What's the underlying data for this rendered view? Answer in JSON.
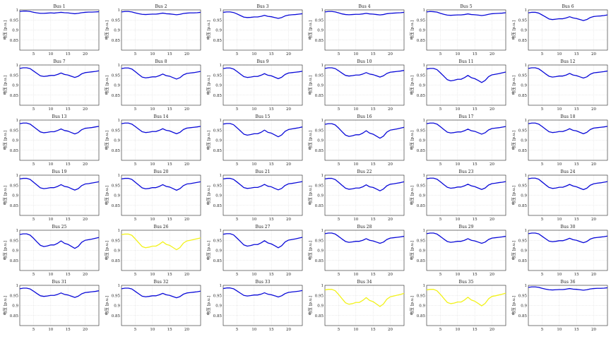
{
  "chart_data": {
    "type": "line",
    "layout": "grid 6x6 small multiples",
    "ylabel": "电压 [p.u.]",
    "xlabel": "",
    "x": [
      1,
      2,
      3,
      4,
      5,
      6,
      7,
      8,
      9,
      10,
      11,
      12,
      13,
      14,
      15,
      16,
      17,
      18,
      19,
      20,
      21,
      22,
      23,
      24
    ],
    "xlim": [
      1,
      24
    ],
    "ylim": [
      0.8,
      1.0
    ],
    "xticks": [
      5,
      10,
      15,
      20
    ],
    "yticks": [
      0.85,
      0.9,
      0.95,
      1
    ],
    "grid": true,
    "colors": {
      "normal": "#0a0ad8",
      "highlight": "#f2f21a",
      "frame": "#222222",
      "grid": "#d9d9d9"
    },
    "panels": [
      {
        "title": "Bus 1",
        "highlight": false,
        "values": [
          0.992,
          0.994,
          0.994,
          0.992,
          0.988,
          0.985,
          0.983,
          0.983,
          0.984,
          0.985,
          0.984,
          0.986,
          0.988,
          0.986,
          0.985,
          0.983,
          0.981,
          0.983,
          0.986,
          0.988,
          0.989,
          0.989,
          0.99,
          0.991
        ]
      },
      {
        "title": "Bus 2",
        "highlight": false,
        "values": [
          0.99,
          0.992,
          0.992,
          0.99,
          0.985,
          0.981,
          0.978,
          0.977,
          0.978,
          0.979,
          0.979,
          0.981,
          0.984,
          0.981,
          0.98,
          0.978,
          0.976,
          0.978,
          0.982,
          0.984,
          0.985,
          0.985,
          0.986,
          0.988
        ]
      },
      {
        "title": "Bus 3",
        "highlight": false,
        "values": [
          0.988,
          0.99,
          0.99,
          0.987,
          0.98,
          0.972,
          0.964,
          0.962,
          0.963,
          0.965,
          0.965,
          0.968,
          0.973,
          0.968,
          0.966,
          0.962,
          0.958,
          0.962,
          0.97,
          0.974,
          0.976,
          0.977,
          0.979,
          0.981
        ]
      },
      {
        "title": "Bus 4",
        "highlight": false,
        "values": [
          0.99,
          0.992,
          0.992,
          0.99,
          0.985,
          0.98,
          0.977,
          0.976,
          0.977,
          0.978,
          0.978,
          0.98,
          0.983,
          0.98,
          0.979,
          0.977,
          0.975,
          0.977,
          0.981,
          0.983,
          0.984,
          0.985,
          0.986,
          0.988
        ]
      },
      {
        "title": "Bus 5",
        "highlight": false,
        "values": [
          0.99,
          0.992,
          0.991,
          0.989,
          0.983,
          0.978,
          0.974,
          0.973,
          0.974,
          0.975,
          0.975,
          0.977,
          0.98,
          0.977,
          0.976,
          0.974,
          0.972,
          0.974,
          0.978,
          0.981,
          0.982,
          0.983,
          0.984,
          0.986
        ]
      },
      {
        "title": "Bus 6",
        "highlight": false,
        "values": [
          0.985,
          0.988,
          0.988,
          0.984,
          0.975,
          0.965,
          0.955,
          0.952,
          0.954,
          0.956,
          0.956,
          0.96,
          0.966,
          0.96,
          0.957,
          0.952,
          0.947,
          0.952,
          0.962,
          0.967,
          0.969,
          0.97,
          0.972,
          0.975
        ]
      },
      {
        "title": "Bus 7",
        "highlight": false,
        "values": [
          0.983,
          0.986,
          0.986,
          0.982,
          0.97,
          0.958,
          0.946,
          0.943,
          0.945,
          0.948,
          0.948,
          0.953,
          0.96,
          0.953,
          0.95,
          0.944,
          0.938,
          0.944,
          0.956,
          0.962,
          0.964,
          0.966,
          0.968,
          0.971
        ]
      },
      {
        "title": "Bus 8",
        "highlight": false,
        "values": [
          0.982,
          0.985,
          0.985,
          0.98,
          0.967,
          0.953,
          0.94,
          0.936,
          0.938,
          0.941,
          0.941,
          0.947,
          0.955,
          0.947,
          0.944,
          0.937,
          0.93,
          0.937,
          0.951,
          0.958,
          0.96,
          0.962,
          0.965,
          0.968
        ]
      },
      {
        "title": "Bus 9",
        "highlight": false,
        "values": [
          0.982,
          0.985,
          0.985,
          0.98,
          0.968,
          0.955,
          0.942,
          0.938,
          0.94,
          0.943,
          0.943,
          0.949,
          0.957,
          0.949,
          0.946,
          0.939,
          0.932,
          0.939,
          0.953,
          0.96,
          0.962,
          0.964,
          0.966,
          0.969
        ]
      },
      {
        "title": "Bus 10",
        "highlight": false,
        "values": [
          0.983,
          0.986,
          0.986,
          0.982,
          0.971,
          0.959,
          0.948,
          0.945,
          0.947,
          0.95,
          0.95,
          0.955,
          0.962,
          0.955,
          0.952,
          0.946,
          0.94,
          0.946,
          0.958,
          0.964,
          0.966,
          0.968,
          0.97,
          0.973
        ]
      },
      {
        "title": "Bus 11",
        "highlight": false,
        "values": [
          0.98,
          0.983,
          0.983,
          0.977,
          0.961,
          0.944,
          0.927,
          0.921,
          0.924,
          0.929,
          0.929,
          0.937,
          0.948,
          0.937,
          0.932,
          0.923,
          0.913,
          0.923,
          0.942,
          0.951,
          0.954,
          0.957,
          0.961,
          0.965
        ]
      },
      {
        "title": "Bus 12",
        "highlight": false,
        "values": [
          0.983,
          0.986,
          0.986,
          0.981,
          0.969,
          0.956,
          0.944,
          0.94,
          0.942,
          0.945,
          0.945,
          0.95,
          0.958,
          0.95,
          0.947,
          0.941,
          0.935,
          0.941,
          0.954,
          0.961,
          0.963,
          0.965,
          0.967,
          0.97
        ]
      },
      {
        "title": "Bus 13",
        "highlight": false,
        "values": [
          0.982,
          0.985,
          0.985,
          0.98,
          0.967,
          0.954,
          0.941,
          0.937,
          0.939,
          0.942,
          0.942,
          0.948,
          0.956,
          0.948,
          0.945,
          0.938,
          0.931,
          0.938,
          0.952,
          0.959,
          0.961,
          0.963,
          0.966,
          0.969
        ]
      },
      {
        "title": "Bus 14",
        "highlight": false,
        "values": [
          0.982,
          0.985,
          0.985,
          0.98,
          0.968,
          0.955,
          0.942,
          0.938,
          0.94,
          0.943,
          0.943,
          0.949,
          0.957,
          0.949,
          0.946,
          0.939,
          0.932,
          0.939,
          0.953,
          0.96,
          0.962,
          0.964,
          0.966,
          0.969
        ]
      },
      {
        "title": "Bus 15",
        "highlight": false,
        "values": [
          0.98,
          0.983,
          0.983,
          0.977,
          0.962,
          0.946,
          0.93,
          0.925,
          0.928,
          0.932,
          0.932,
          0.939,
          0.95,
          0.939,
          0.935,
          0.926,
          0.917,
          0.926,
          0.944,
          0.953,
          0.956,
          0.959,
          0.962,
          0.966
        ]
      },
      {
        "title": "Bus 16",
        "highlight": false,
        "values": [
          0.979,
          0.982,
          0.982,
          0.976,
          0.96,
          0.942,
          0.925,
          0.919,
          0.922,
          0.927,
          0.927,
          0.935,
          0.947,
          0.935,
          0.93,
          0.92,
          0.91,
          0.92,
          0.94,
          0.95,
          0.953,
          0.956,
          0.96,
          0.964
        ]
      },
      {
        "title": "Bus 17",
        "highlight": false,
        "values": [
          0.982,
          0.985,
          0.985,
          0.98,
          0.967,
          0.953,
          0.94,
          0.936,
          0.938,
          0.941,
          0.941,
          0.947,
          0.955,
          0.947,
          0.944,
          0.937,
          0.93,
          0.937,
          0.951,
          0.958,
          0.96,
          0.962,
          0.965,
          0.968
        ]
      },
      {
        "title": "Bus 18",
        "highlight": false,
        "values": [
          0.982,
          0.985,
          0.985,
          0.98,
          0.968,
          0.955,
          0.942,
          0.938,
          0.94,
          0.943,
          0.943,
          0.949,
          0.957,
          0.949,
          0.946,
          0.939,
          0.932,
          0.939,
          0.953,
          0.96,
          0.962,
          0.964,
          0.966,
          0.969
        ]
      },
      {
        "title": "Bus 19",
        "highlight": false,
        "values": [
          0.981,
          0.984,
          0.984,
          0.979,
          0.965,
          0.951,
          0.937,
          0.933,
          0.935,
          0.938,
          0.938,
          0.944,
          0.953,
          0.944,
          0.941,
          0.933,
          0.926,
          0.933,
          0.948,
          0.956,
          0.958,
          0.961,
          0.964,
          0.967
        ]
      },
      {
        "title": "Bus 20",
        "highlight": false,
        "values": [
          0.981,
          0.984,
          0.984,
          0.979,
          0.965,
          0.951,
          0.937,
          0.932,
          0.934,
          0.938,
          0.938,
          0.944,
          0.953,
          0.944,
          0.941,
          0.933,
          0.925,
          0.933,
          0.948,
          0.956,
          0.958,
          0.961,
          0.964,
          0.967
        ]
      },
      {
        "title": "Bus 21",
        "highlight": false,
        "values": [
          0.981,
          0.984,
          0.984,
          0.979,
          0.966,
          0.952,
          0.938,
          0.934,
          0.936,
          0.939,
          0.939,
          0.945,
          0.954,
          0.945,
          0.942,
          0.934,
          0.927,
          0.934,
          0.949,
          0.957,
          0.959,
          0.962,
          0.965,
          0.968
        ]
      },
      {
        "title": "Bus 22",
        "highlight": false,
        "values": [
          0.981,
          0.984,
          0.984,
          0.978,
          0.964,
          0.949,
          0.935,
          0.93,
          0.932,
          0.936,
          0.936,
          0.942,
          0.952,
          0.942,
          0.939,
          0.931,
          0.922,
          0.931,
          0.947,
          0.955,
          0.957,
          0.96,
          0.963,
          0.967
        ]
      },
      {
        "title": "Bus 23",
        "highlight": false,
        "values": [
          0.982,
          0.985,
          0.985,
          0.98,
          0.967,
          0.953,
          0.94,
          0.935,
          0.937,
          0.941,
          0.941,
          0.947,
          0.955,
          0.947,
          0.943,
          0.936,
          0.929,
          0.936,
          0.951,
          0.958,
          0.96,
          0.963,
          0.965,
          0.968
        ]
      },
      {
        "title": "Bus 24",
        "highlight": false,
        "values": [
          0.982,
          0.985,
          0.985,
          0.98,
          0.966,
          0.952,
          0.939,
          0.934,
          0.936,
          0.94,
          0.94,
          0.946,
          0.954,
          0.946,
          0.942,
          0.935,
          0.928,
          0.935,
          0.95,
          0.957,
          0.96,
          0.962,
          0.965,
          0.968
        ]
      },
      {
        "title": "Bus 25",
        "highlight": false,
        "values": [
          0.979,
          0.982,
          0.982,
          0.976,
          0.96,
          0.942,
          0.925,
          0.919,
          0.922,
          0.927,
          0.927,
          0.935,
          0.947,
          0.935,
          0.93,
          0.92,
          0.91,
          0.92,
          0.94,
          0.95,
          0.953,
          0.956,
          0.96,
          0.964
        ]
      },
      {
        "title": "Bus 26",
        "highlight": true,
        "values": [
          0.978,
          0.981,
          0.981,
          0.975,
          0.957,
          0.938,
          0.919,
          0.913,
          0.916,
          0.921,
          0.921,
          0.93,
          0.943,
          0.93,
          0.925,
          0.914,
          0.903,
          0.914,
          0.936,
          0.947,
          0.95,
          0.954,
          0.958,
          0.962
        ]
      },
      {
        "title": "Bus 27",
        "highlight": false,
        "values": [
          0.98,
          0.983,
          0.983,
          0.977,
          0.961,
          0.944,
          0.927,
          0.921,
          0.924,
          0.929,
          0.929,
          0.937,
          0.948,
          0.937,
          0.932,
          0.923,
          0.913,
          0.923,
          0.942,
          0.951,
          0.954,
          0.957,
          0.961,
          0.965
        ]
      },
      {
        "title": "Bus 28",
        "highlight": false,
        "values": [
          0.983,
          0.986,
          0.986,
          0.981,
          0.969,
          0.956,
          0.944,
          0.94,
          0.942,
          0.945,
          0.945,
          0.95,
          0.958,
          0.95,
          0.947,
          0.941,
          0.935,
          0.941,
          0.954,
          0.961,
          0.963,
          0.965,
          0.967,
          0.97
        ]
      },
      {
        "title": "Bus 29",
        "highlight": false,
        "values": [
          0.983,
          0.986,
          0.986,
          0.981,
          0.969,
          0.956,
          0.944,
          0.94,
          0.942,
          0.945,
          0.945,
          0.95,
          0.958,
          0.95,
          0.947,
          0.941,
          0.935,
          0.941,
          0.954,
          0.961,
          0.963,
          0.965,
          0.967,
          0.97
        ]
      },
      {
        "title": "Bus 30",
        "highlight": false,
        "values": [
          0.983,
          0.986,
          0.986,
          0.982,
          0.97,
          0.958,
          0.946,
          0.943,
          0.945,
          0.948,
          0.948,
          0.953,
          0.96,
          0.953,
          0.95,
          0.944,
          0.938,
          0.944,
          0.956,
          0.962,
          0.964,
          0.966,
          0.968,
          0.971
        ]
      },
      {
        "title": "Bus 31",
        "highlight": false,
        "values": [
          0.983,
          0.986,
          0.986,
          0.982,
          0.971,
          0.959,
          0.948,
          0.945,
          0.947,
          0.95,
          0.95,
          0.955,
          0.962,
          0.955,
          0.952,
          0.946,
          0.94,
          0.946,
          0.958,
          0.964,
          0.966,
          0.968,
          0.97,
          0.973
        ]
      },
      {
        "title": "Bus 32",
        "highlight": false,
        "values": [
          0.983,
          0.986,
          0.986,
          0.982,
          0.97,
          0.958,
          0.946,
          0.943,
          0.945,
          0.948,
          0.948,
          0.953,
          0.96,
          0.953,
          0.95,
          0.944,
          0.938,
          0.944,
          0.956,
          0.962,
          0.964,
          0.966,
          0.968,
          0.971
        ]
      },
      {
        "title": "Bus 33",
        "highlight": false,
        "values": [
          0.984,
          0.987,
          0.987,
          0.983,
          0.972,
          0.961,
          0.95,
          0.947,
          0.949,
          0.952,
          0.952,
          0.956,
          0.963,
          0.956,
          0.953,
          0.948,
          0.942,
          0.948,
          0.959,
          0.965,
          0.967,
          0.969,
          0.971,
          0.974
        ]
      },
      {
        "title": "Bus 34",
        "highlight": true,
        "values": [
          0.977,
          0.98,
          0.98,
          0.973,
          0.954,
          0.933,
          0.913,
          0.906,
          0.909,
          0.915,
          0.915,
          0.925,
          0.939,
          0.925,
          0.919,
          0.907,
          0.895,
          0.907,
          0.931,
          0.943,
          0.947,
          0.951,
          0.955,
          0.96
        ]
      },
      {
        "title": "Bus 35",
        "highlight": true,
        "values": [
          0.977,
          0.98,
          0.98,
          0.973,
          0.955,
          0.935,
          0.915,
          0.909,
          0.912,
          0.917,
          0.917,
          0.927,
          0.941,
          0.927,
          0.921,
          0.91,
          0.898,
          0.91,
          0.933,
          0.945,
          0.948,
          0.952,
          0.956,
          0.961
        ]
      },
      {
        "title": "Bus 36",
        "highlight": false,
        "values": [
          0.99,
          0.992,
          0.992,
          0.99,
          0.985,
          0.981,
          0.978,
          0.977,
          0.978,
          0.979,
          0.979,
          0.981,
          0.984,
          0.981,
          0.98,
          0.978,
          0.976,
          0.978,
          0.982,
          0.984,
          0.985,
          0.985,
          0.986,
          0.988
        ]
      }
    ]
  }
}
